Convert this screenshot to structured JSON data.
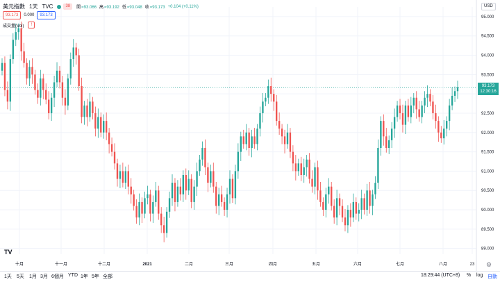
{
  "header": {
    "symbol": "美元指數",
    "interval": "1天",
    "exchange": "TVC",
    "badge": "38",
    "ohlc": [
      {
        "label": "開",
        "value": "=93.066"
      },
      {
        "label": "高",
        "value": "=93.192"
      },
      {
        "label": "低",
        "value": "=93.048"
      },
      {
        "label": "收",
        "value": "=93.173"
      }
    ],
    "change": "+0.104 (+0.11%)",
    "bid": "93.173",
    "spread": "0.000",
    "ask": "93.173"
  },
  "volume_label": "成交量(Vol)",
  "volume_warning": "!",
  "currency": "USD",
  "last_price_box": {
    "price": "93.173",
    "countdown": "12:30:16"
  },
  "logo_text": "TV",
  "footer": {
    "ranges": [
      "1天",
      "5天",
      "1月",
      "3月",
      "6個月",
      "YTD",
      "1年",
      "5年",
      "全部"
    ],
    "time": "18:29:44 (UTC+8)",
    "percent": "%",
    "log": "log",
    "auto": "自動"
  },
  "colors": {
    "up": "#26a69a",
    "down": "#ef5350",
    "grid": "#f0f3fa",
    "text": "#131722"
  },
  "chart_data": {
    "type": "candlestick",
    "title": "美元指數",
    "yticks": [
      "95.000",
      "94.500",
      "94.000",
      "93.500",
      "93.000",
      "92.500",
      "92.000",
      "91.500",
      "91.000",
      "90.500",
      "90.000",
      "89.500",
      "89.000"
    ],
    "ylim": [
      88.85,
      95.25
    ],
    "xticks": [
      "十月",
      "十一月",
      "十二月",
      "2021",
      "二月",
      "三月",
      "四月",
      "五月",
      "六月",
      "七月",
      "八月",
      "23"
    ],
    "last_value": 93.173,
    "series": [
      {
        "name": "",
        "close": [
          93.8,
          93.1,
          92.8,
          93.9,
          94.4,
          94.6,
          94.7,
          94.1,
          93.8,
          93.4,
          93.7,
          93.5,
          93.1,
          92.9,
          93.4,
          93.1,
          92.85,
          92.5,
          92.9,
          93.3,
          93.6,
          93.3,
          92.9,
          92.7,
          93.4,
          93.9,
          94.2,
          94.0,
          93.2,
          92.4,
          92.7,
          92.4,
          92.8,
          92.5,
          92.1,
          92.4,
          92.0,
          92.3,
          92.0,
          91.7,
          91.5,
          91.2,
          90.8,
          91.0,
          90.7,
          91.0,
          90.6,
          90.4,
          90.1,
          89.8,
          90.2,
          89.9,
          90.3,
          90.4,
          89.9,
          90.2,
          90.5,
          89.9,
          89.6,
          89.4,
          89.95,
          90.3,
          90.7,
          90.2,
          90.6,
          90.4,
          90.9,
          90.5,
          90.8,
          90.2,
          90.6,
          91.0,
          91.3,
          91.6,
          91.1,
          90.7,
          91.0,
          90.6,
          90.1,
          90.4,
          90.2,
          90.0,
          90.4,
          90.8,
          90.3,
          91.0,
          91.5,
          91.9,
          91.7,
          92.0,
          91.6,
          91.9,
          91.7,
          92.1,
          92.5,
          92.8,
          92.9,
          93.2,
          93.0,
          92.8,
          92.3,
          92.1,
          91.9,
          91.7,
          92.0,
          91.5,
          91.2,
          91.0,
          91.2,
          90.9,
          91.1,
          91.3,
          90.8,
          90.6,
          91.1,
          90.5,
          90.2,
          90.0,
          90.4,
          90.6,
          90.1,
          89.8,
          90.3,
          90.1,
          89.8,
          89.6,
          90.0,
          89.8,
          90.2,
          89.9,
          90.0,
          90.3,
          90.0,
          90.5,
          90.1,
          90.4,
          90.7,
          91.6,
          92.3,
          91.9,
          91.6,
          91.8,
          92.1,
          92.4,
          92.7,
          92.5,
          92.2,
          92.7,
          92.4,
          92.7,
          92.9,
          92.6,
          92.4,
          92.7,
          92.9,
          93.0,
          92.8,
          92.5,
          92.3,
          92.0,
          91.85,
          92.1,
          92.3,
          92.7,
          92.95,
          93.07,
          93.173
        ]
      }
    ]
  }
}
